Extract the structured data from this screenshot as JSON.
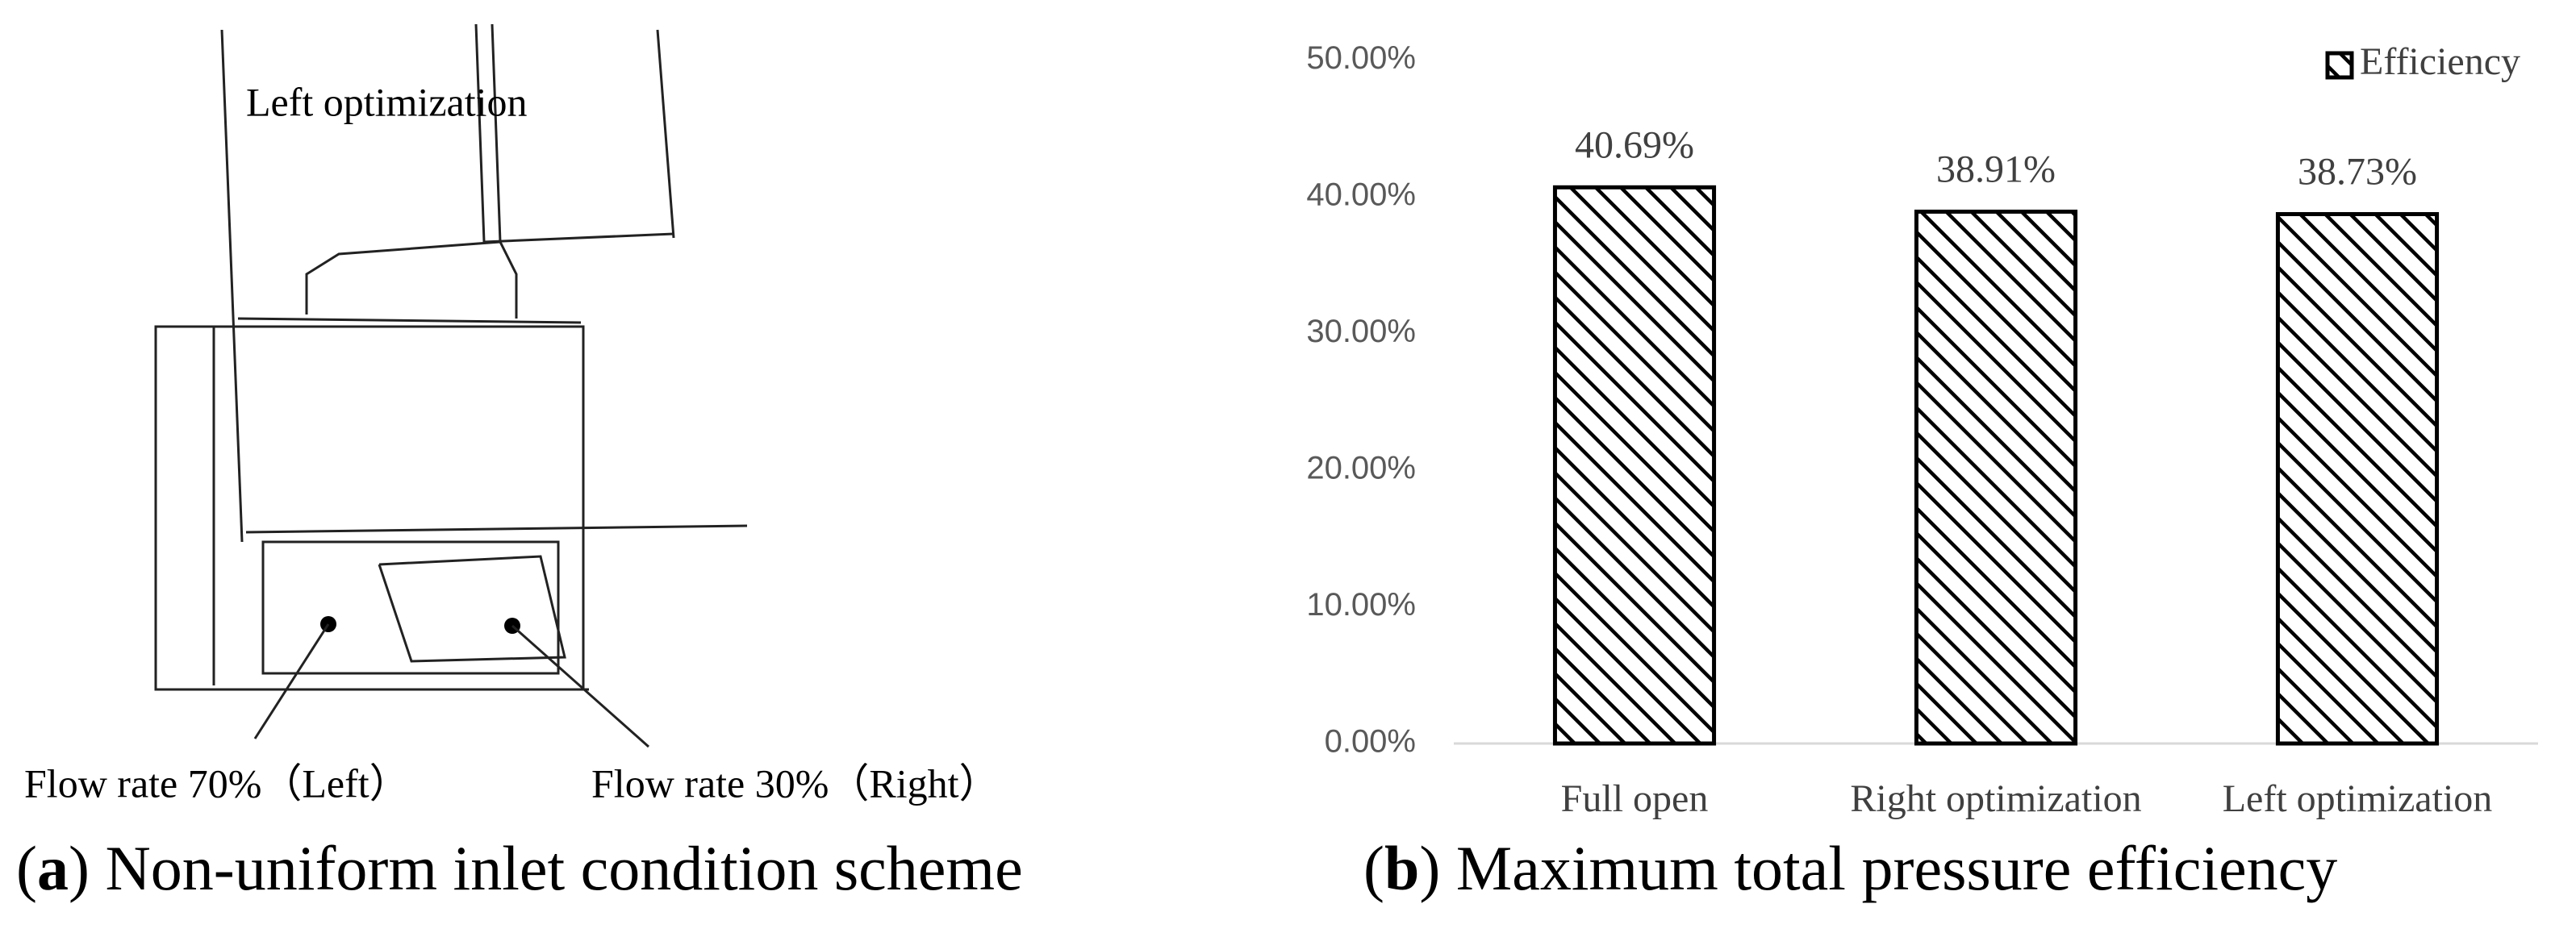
{
  "panel_a": {
    "labels": [
      "Left  optimization",
      "Flow rate 70%（Left）",
      "Flow rate 30%（Right）"
    ],
    "caption": {
      "open": "(",
      "label": "a",
      "text": ") Non-uniform inlet condition scheme"
    }
  },
  "panel_b_caption": {
    "open": "(",
    "label": "b",
    "text": ") Maximum total pressure efficiency"
  },
  "chart_data": {
    "type": "bar",
    "categories": [
      "Full open",
      "Right optimization",
      "Left optimization"
    ],
    "series": [
      {
        "name": "Efficiency",
        "color": "#000000",
        "values": [
          40.69,
          38.91,
          38.73
        ],
        "value_labels": [
          "40.69%",
          "38.91%",
          "38.73%"
        ]
      }
    ],
    "ylim": [
      0,
      50
    ],
    "yticks": [
      {
        "value": 0,
        "label": "0.00%"
      },
      {
        "value": 10,
        "label": "10.00%"
      },
      {
        "value": 20,
        "label": "20.00%"
      },
      {
        "value": 30,
        "label": "30.00%"
      },
      {
        "value": 40,
        "label": "40.00%"
      },
      {
        "value": 50,
        "label": "50.00%"
      }
    ],
    "grid": false,
    "legend": "top-right",
    "hatch": true
  }
}
